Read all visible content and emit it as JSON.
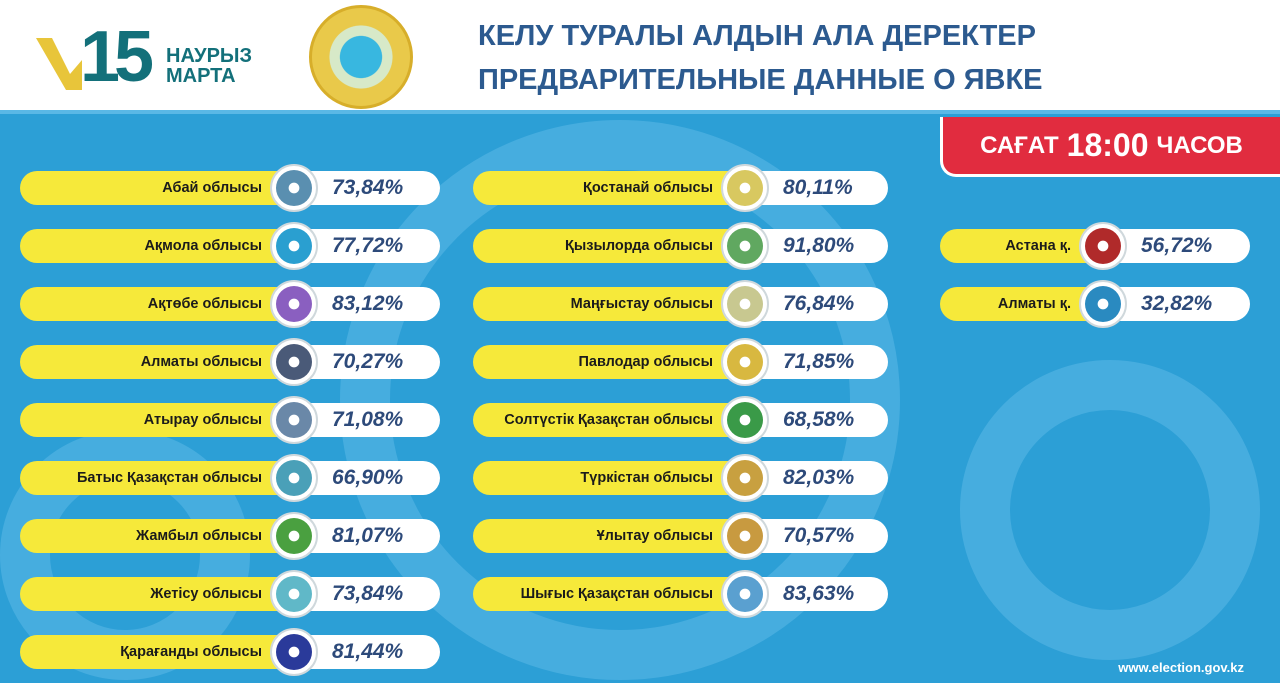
{
  "header": {
    "logo_number": "15",
    "logo_line1": "НАУРЫЗ",
    "logo_line2": "МАРТА",
    "title_kz": "КЕЛУ ТУРАЛЫ АЛДЫН АЛА ДЕРЕКТЕР",
    "title_ru": "ПРЕДВАРИТЕЛЬНЫЕ ДАННЫЕ О ЯВКЕ"
  },
  "time_badge": {
    "prefix": "САҒАТ",
    "time": "18:00",
    "suffix": "ЧАСОВ"
  },
  "columns": [
    [
      {
        "name": "Абай облысы",
        "value": "73,84%"
      },
      {
        "name": "Ақмола облысы",
        "value": "77,72%"
      },
      {
        "name": "Ақтөбе облысы",
        "value": "83,12%"
      },
      {
        "name": "Алматы облысы",
        "value": "70,27%"
      },
      {
        "name": "Атырау облысы",
        "value": "71,08%"
      },
      {
        "name": "Батыс Қазақстан облысы",
        "value": "66,90%"
      },
      {
        "name": "Жамбыл облысы",
        "value": "81,07%"
      },
      {
        "name": "Жетісу облысы",
        "value": "73,84%"
      },
      {
        "name": "Қарағанды облысы",
        "value": "81,44%"
      }
    ],
    [
      {
        "name": "Қостанай облысы",
        "value": "80,11%"
      },
      {
        "name": "Қызылорда облысы",
        "value": "91,80%"
      },
      {
        "name": "Маңғыстау облысы",
        "value": "76,84%"
      },
      {
        "name": "Павлодар облысы",
        "value": "71,85%"
      },
      {
        "name": "Солтүстік Қазақстан облысы",
        "value": "68,58%"
      },
      {
        "name": "Түркістан облысы",
        "value": "82,03%"
      },
      {
        "name": "Ұлытау облысы",
        "value": "70,57%"
      },
      {
        "name": "Шығыс Қазақстан облысы",
        "value": "83,63%"
      }
    ],
    [
      {
        "name": "Астана қ.",
        "value": "56,72%"
      },
      {
        "name": "Алматы қ.",
        "value": "32,82%"
      }
    ]
  ],
  "emblem_colors": [
    "#5a8fb0",
    "#2a9fd0",
    "#8a5fc0",
    "#4a5a78",
    "#6a88a8",
    "#4aa0b8",
    "#4aa040",
    "#60b8c8",
    "#2a3a9a",
    "#d8c860",
    "#60a860",
    "#c8c890",
    "#d8b840",
    "#3a9a48",
    "#c8a040",
    "#c89a40",
    "#5aa0d0",
    "#b02a2a",
    "#2a8ac0"
  ],
  "footer": {
    "url": "www.election.gov.kz"
  }
}
